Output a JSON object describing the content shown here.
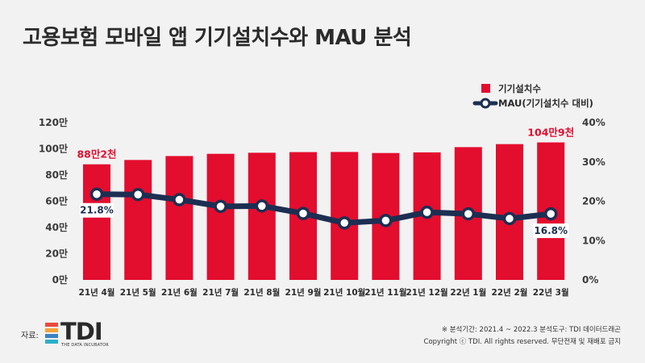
{
  "title": "고용보험 모바일 앱 기기설치수와 MAU 분석",
  "source_label": "자료:",
  "logo": {
    "text": "TDI",
    "subtitle": "THE DATA INCUBATOR",
    "colors": [
      "#e94b3c",
      "#f3a33a",
      "#3b82c4",
      "#2ab0c8"
    ]
  },
  "footer": {
    "analysis": "※ 분석기간: 2021.4 ~ 2022.3   분석도구: TDI 데이터드래곤",
    "copyright": "Copyright ⓒ TDI. All rights reserved. 무단전재 및 재배포 금지"
  },
  "colors": {
    "bar": "#e30d2e",
    "line": "#1c2f52",
    "label_red": "#e30d2e"
  },
  "chart_data": {
    "type": "bar",
    "categories": [
      "21년 4월",
      "21년 5월",
      "21년 6월",
      "21년 7월",
      "21년 8월",
      "21년 9월",
      "21년 10월",
      "21년 11월",
      "21년 12월",
      "22년 1월",
      "22년 2월",
      "22년 3월"
    ],
    "series": [
      {
        "name": "기기설치수",
        "type": "bar",
        "axis": "left",
        "values": [
          88.2,
          91.5,
          94.5,
          96.2,
          97.0,
          97.5,
          97.6,
          96.8,
          97.3,
          101.3,
          103.6,
          104.9
        ]
      },
      {
        "name": "MAU(기기설치수 대비)",
        "type": "line",
        "axis": "right",
        "values": [
          21.8,
          21.7,
          20.4,
          18.7,
          18.8,
          16.9,
          14.5,
          15.1,
          17.2,
          16.8,
          15.6,
          16.8
        ]
      }
    ],
    "y_left": {
      "ticks": [
        "0만",
        "20만",
        "40만",
        "60만",
        "80만",
        "100만",
        "120만"
      ],
      "range": [
        0,
        120
      ]
    },
    "y_right": {
      "ticks": [
        "0%",
        "10%",
        "20%",
        "30%",
        "40%"
      ],
      "range": [
        0,
        40
      ]
    },
    "annotations": {
      "first_bar": "88만2천",
      "last_bar": "104만9천",
      "first_point": "21.8%",
      "last_point": "16.8%"
    },
    "legend_position": "top-right",
    "grid": false
  }
}
